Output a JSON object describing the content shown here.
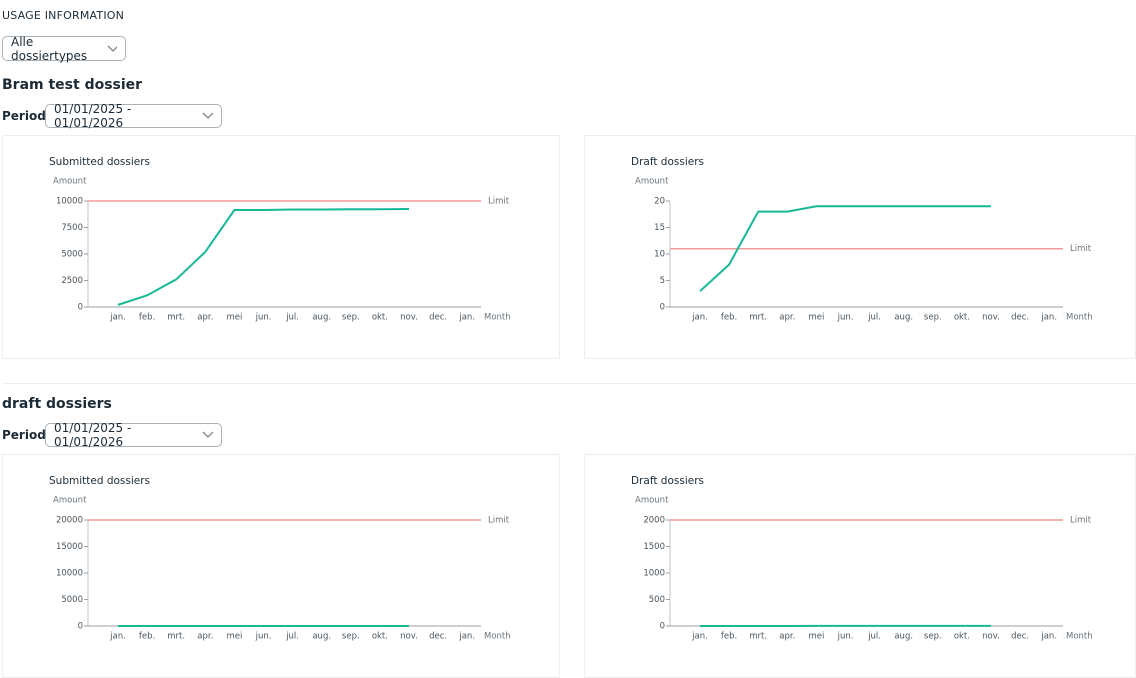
{
  "header": {
    "title": "USAGE INFORMATION",
    "filter": "Alle dossiertypes"
  },
  "sections": [
    {
      "title": "Bram test dossier",
      "period_label": "Period:",
      "period": "01/01/2025 - 01/01/2026"
    },
    {
      "title": "draft dossiers",
      "period_label": "Period:",
      "period": "01/01/2025 - 01/01/2026"
    }
  ],
  "chart_data": [
    {
      "type": "line",
      "title": "Submitted dossiers",
      "y_label": "Amount",
      "x_label": "Month",
      "categories": [
        "jan.",
        "feb.",
        "mrt.",
        "apr.",
        "mei",
        "jun.",
        "jul.",
        "aug.",
        "sep.",
        "okt.",
        "nov.",
        "dec.",
        "jan."
      ],
      "series": [
        {
          "color": "#17b897",
          "values": [
            200,
            1100,
            2600,
            5200,
            9150,
            9150,
            9200,
            9200,
            9220,
            9220,
            9250,
            null,
            null
          ]
        }
      ],
      "limit": {
        "label": "Limit",
        "value": 10000,
        "color": "#f29b9b"
      },
      "ylim": [
        0,
        10000
      ],
      "yticks": [
        0,
        2500,
        5000,
        7500,
        10000
      ]
    },
    {
      "type": "line",
      "title": "Draft dossiers",
      "y_label": "Amount",
      "x_label": "Month",
      "categories": [
        "jan.",
        "feb.",
        "mrt.",
        "apr.",
        "mei",
        "jun.",
        "jul.",
        "aug.",
        "sep.",
        "okt.",
        "nov.",
        "dec.",
        "jan."
      ],
      "series": [
        {
          "color": "#17b897",
          "values": [
            3,
            8,
            18,
            18,
            19,
            19,
            19,
            19,
            19,
            19,
            19,
            null,
            null
          ]
        }
      ],
      "limit": {
        "label": "Limit",
        "value": 11,
        "color": "#f29b9b"
      },
      "ylim": [
        0,
        20
      ],
      "yticks": [
        0,
        5,
        10,
        15,
        20
      ]
    },
    {
      "type": "line",
      "title": "Submitted dossiers",
      "y_label": "Amount",
      "x_label": "Month",
      "categories": [
        "jan.",
        "feb.",
        "mrt.",
        "apr.",
        "mei",
        "jun.",
        "jul.",
        "aug.",
        "sep.",
        "okt.",
        "nov.",
        "dec.",
        "jan."
      ],
      "series": [
        {
          "color": "#17b897",
          "values": [
            0,
            0,
            0,
            0,
            0,
            0,
            0,
            0,
            0,
            0,
            0,
            null,
            null
          ]
        }
      ],
      "limit": {
        "label": "Limit",
        "value": 20000,
        "color": "#f29b9b"
      },
      "ylim": [
        0,
        20000
      ],
      "yticks": [
        0,
        5000,
        10000,
        15000,
        20000
      ]
    },
    {
      "type": "line",
      "title": "Draft dossiers",
      "y_label": "Amount",
      "x_label": "Month",
      "categories": [
        "jan.",
        "feb.",
        "mrt.",
        "apr.",
        "mei",
        "jun.",
        "jul.",
        "aug.",
        "sep.",
        "okt.",
        "nov.",
        "dec.",
        "jan."
      ],
      "series": [
        {
          "color": "#17b897",
          "values": [
            0,
            0,
            0,
            0,
            2,
            2,
            2,
            2,
            2,
            2,
            2,
            null,
            null
          ]
        }
      ],
      "limit": {
        "label": "Limit",
        "value": 2000,
        "color": "#f29b9b"
      },
      "ylim": [
        0,
        2000
      ],
      "yticks": [
        0,
        500,
        1000,
        1500,
        2000
      ]
    }
  ]
}
